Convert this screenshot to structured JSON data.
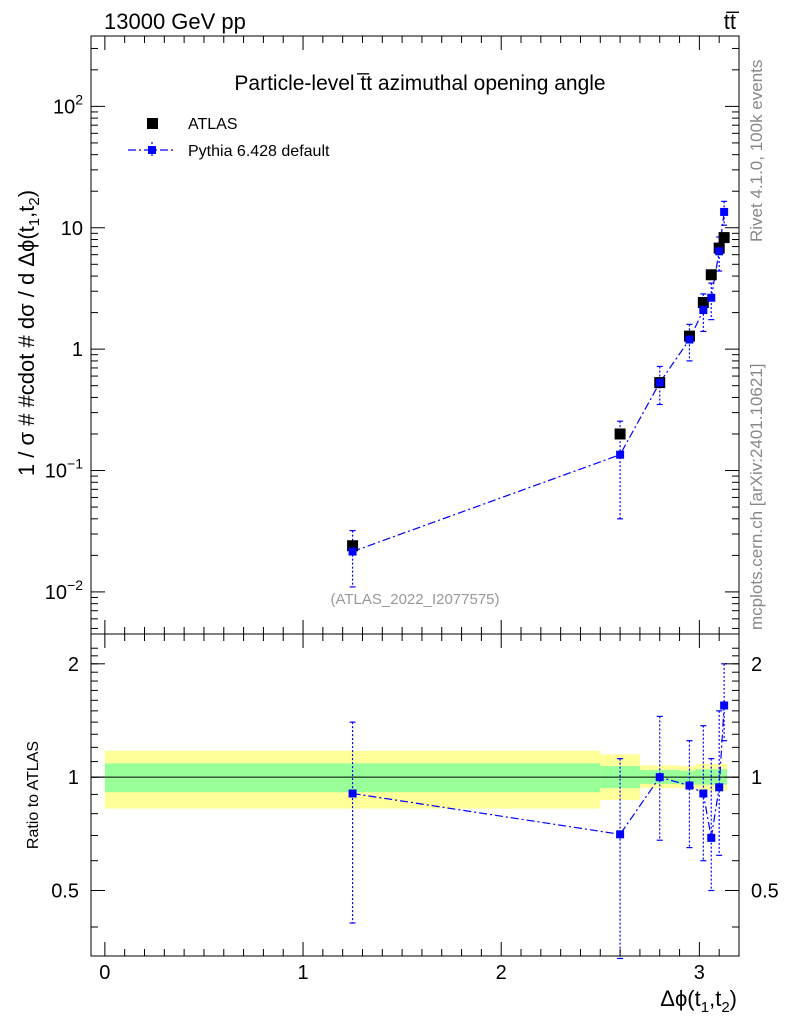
{
  "header": {
    "energy_label": "13000 GeV pp",
    "process_label": "tt̅"
  },
  "side": {
    "rivet_label": "Rivet 4.1.0,  100k events",
    "source_label": "mcplots.cern.ch [arXiv:2401.10621]"
  },
  "chart_data": [
    {
      "type": "scatter",
      "panel": "main",
      "title": "Particle-level t̅t azimuthal opening angle",
      "analysis_tag": "(ATLAS_2022_I2077575)",
      "ylabel": "1 / σ # #cdot # dσ / d Δϕ(t1,t2)",
      "ylabel_parts": {
        "main": "1 / σ # #cdot # dσ / d Δϕ(t",
        "s1": "1",
        "mid": ",t",
        "s2": "2",
        "end": ")"
      },
      "yscale": "log",
      "ylim": [
        0.0045,
        380
      ],
      "xlim": [
        -0.07,
        3.2
      ],
      "y_ticks": [
        {
          "value": 0.01,
          "base": "10",
          "exp": "−2"
        },
        {
          "value": 0.1,
          "base": "10",
          "exp": "−1"
        },
        {
          "value": 1,
          "label": "1"
        },
        {
          "value": 10,
          "label": "10"
        },
        {
          "value": 100,
          "base": "10",
          "exp": "2"
        }
      ],
      "legend": {
        "position": "top-left",
        "entries": [
          "ATLAS",
          "Pythia 6.428 default"
        ]
      },
      "series": [
        {
          "name": "ATLAS",
          "color": "#000000",
          "marker": "square",
          "x": [
            1.25,
            2.6,
            2.8,
            2.95,
            3.02,
            3.06,
            3.1,
            3.125
          ],
          "y": [
            0.024,
            0.2,
            0.53,
            1.28,
            2.42,
            4.1,
            6.8,
            8.3
          ]
        },
        {
          "name": "Pythia 6.428 default",
          "color": "#0000ff",
          "marker": "square",
          "line": "dash-dot",
          "x": [
            1.25,
            2.6,
            2.8,
            2.95,
            3.02,
            3.06,
            3.1,
            3.125
          ],
          "y": [
            0.0215,
            0.135,
            0.53,
            1.2,
            2.1,
            2.65,
            6.4,
            13.5
          ],
          "err_low": [
            0.011,
            0.04,
            0.35,
            0.8,
            1.4,
            1.75,
            4.4,
            10.5
          ],
          "err_high": [
            0.032,
            0.255,
            0.72,
            1.6,
            2.85,
            3.5,
            8.4,
            16.5
          ]
        }
      ]
    },
    {
      "type": "scatter",
      "panel": "ratio",
      "ylabel": "Ratio to ATLAS",
      "xlabel": "Δϕ(t1,t2)",
      "xlabel_parts": {
        "main": "Δϕ(t",
        "s1": "1",
        "mid": ",t",
        "s2": "2",
        "end": ")"
      },
      "yscale": "log",
      "ylim": [
        0.335,
        2.4
      ],
      "xlim": [
        -0.07,
        3.2
      ],
      "x_ticks": [
        0,
        1,
        2,
        3
      ],
      "y_ticks": [
        0.5,
        1,
        2
      ],
      "reference_line": 1,
      "bands": {
        "edges": [
          0,
          2.5,
          2.7,
          2.9,
          2.98,
          3.14
        ],
        "inner_low": [
          0.912,
          0.935,
          0.96,
          0.955,
          0.955
        ],
        "inner_high": [
          1.088,
          1.07,
          1.045,
          1.04,
          1.05
        ],
        "outer_low": [
          0.825,
          0.87,
          0.935,
          0.935,
          0.92
        ],
        "outer_high": [
          1.175,
          1.15,
          1.075,
          1.07,
          1.085
        ],
        "inner_color": "#99ff99",
        "outer_color": "#ffff99"
      },
      "series": [
        {
          "name": "Pythia 6.428 default",
          "color": "#0000ff",
          "x": [
            1.25,
            2.6,
            2.8,
            2.95,
            3.02,
            3.06,
            3.1,
            3.125
          ],
          "y": [
            0.905,
            0.705,
            1.0,
            0.95,
            0.905,
            0.69,
            0.94,
            1.55
          ],
          "err_low": [
            0.41,
            0.33,
            0.68,
            0.65,
            0.6,
            0.5,
            0.62,
            1.25
          ],
          "err_high": [
            1.4,
            1.12,
            1.45,
            1.25,
            1.37,
            1.12,
            1.5,
            2.0
          ]
        }
      ]
    }
  ]
}
